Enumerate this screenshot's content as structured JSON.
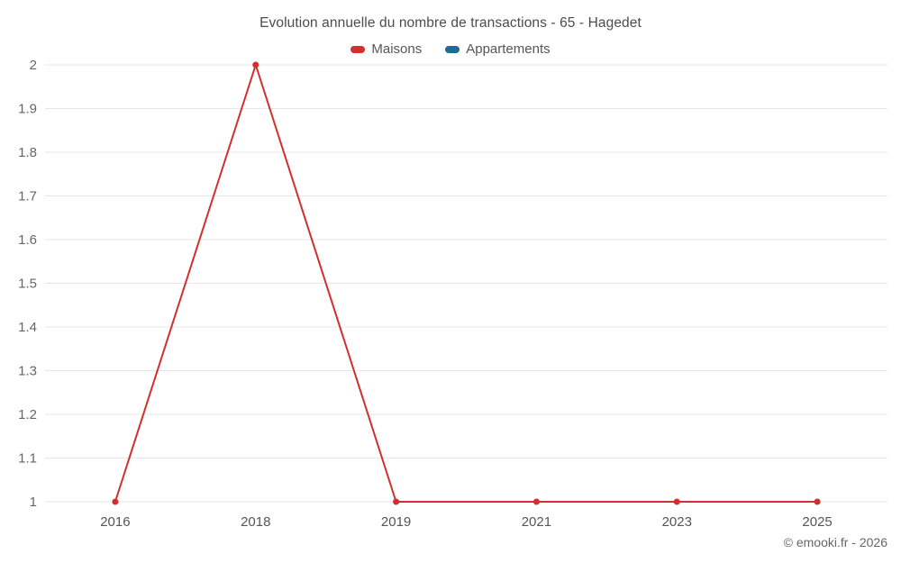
{
  "chart": {
    "title": "Evolution annuelle du nombre de transactions - 65 - Hagedet"
  },
  "chart_data": {
    "type": "line",
    "categories": [
      "2016",
      "2018",
      "2019",
      "2021",
      "2023",
      "2025"
    ],
    "series": [
      {
        "name": "Maisons",
        "color": "#d32f2f",
        "values": [
          1,
          2,
          1,
          1,
          1,
          1
        ]
      },
      {
        "name": "Appartements",
        "color": "#1a6b96",
        "values": []
      }
    ],
    "ylim": [
      1,
      2
    ],
    "ytick_step": 0.1,
    "grid": "horizontal",
    "legend_position": "top",
    "grid_color": "#e6e6e6",
    "tick_label_color": "#666666"
  },
  "footer": {
    "copyright": "© emooki.fr - 2026"
  }
}
